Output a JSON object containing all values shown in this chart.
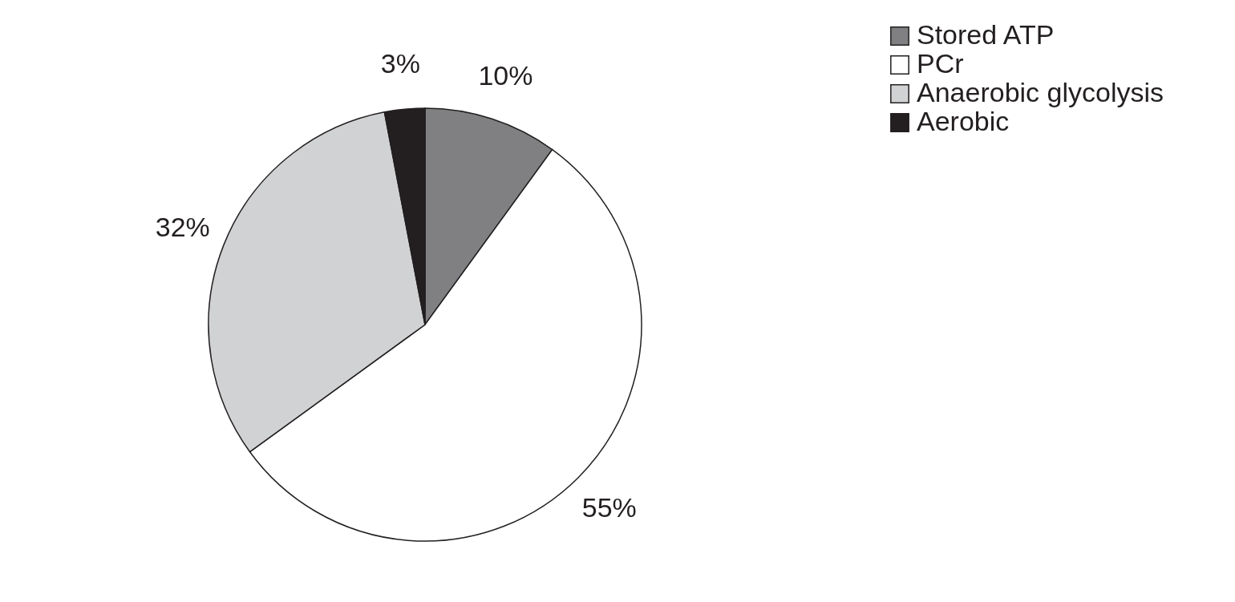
{
  "chart_data": {
    "type": "pie",
    "categories": [
      "Stored ATP",
      "PCr",
      "Anaerobic glycolysis",
      "Aerobic"
    ],
    "values": [
      10,
      55,
      32,
      3
    ],
    "colors": [
      "#808083",
      "#ffffff",
      "#d1d2d4",
      "#231f20"
    ],
    "value_labels": [
      "10%",
      "55%",
      "32%",
      "3%"
    ],
    "legend": "top right"
  }
}
